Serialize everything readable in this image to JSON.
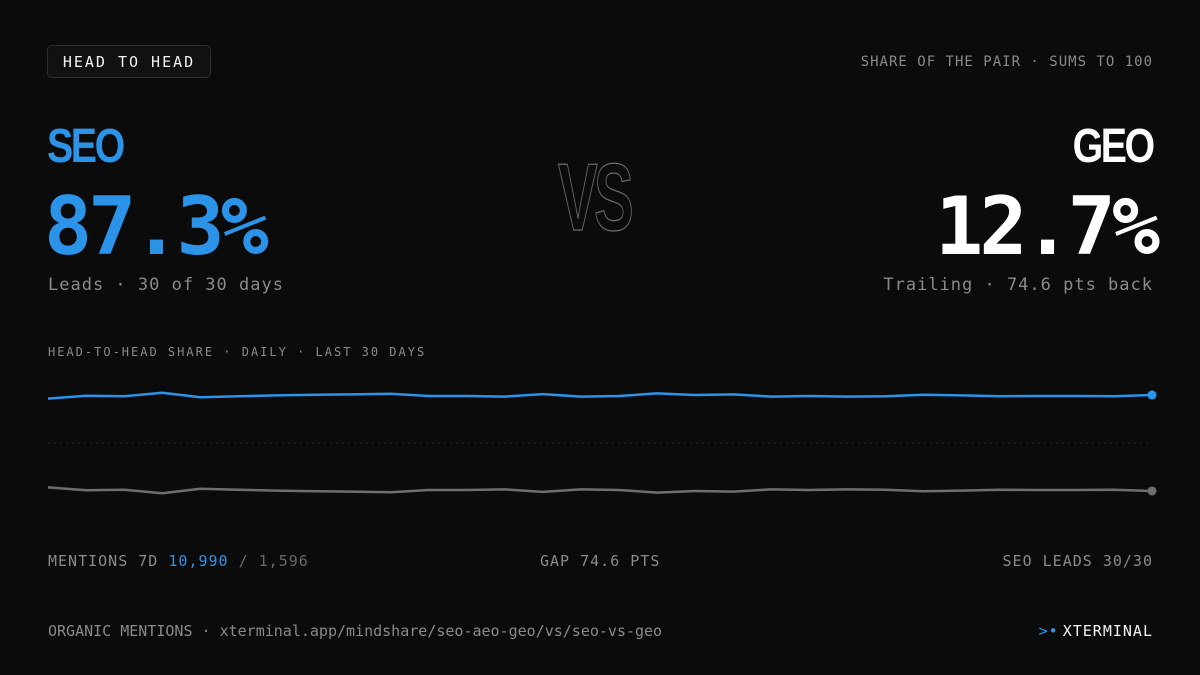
{
  "header": {
    "badge": "HEAD TO HEAD",
    "share_note": "SHARE OF THE PAIR · SUMS TO 100"
  },
  "left": {
    "name": "SEO",
    "pct": "87.3%",
    "sub": "Leads · 30 of 30 days",
    "color": "#2b93e8"
  },
  "vs_label": "VS",
  "right": {
    "name": "GEO",
    "pct": "12.7%",
    "sub": "Trailing · 74.6 pts back",
    "color": "#ffffff"
  },
  "chart_data": {
    "type": "line",
    "title": "HEAD-TO-HEAD SHARE · DAILY · LAST 30 DAYS",
    "x": [
      1,
      2,
      3,
      4,
      5,
      6,
      7,
      8,
      9,
      10,
      11,
      12,
      13,
      14,
      15,
      16,
      17,
      18,
      19,
      20,
      21,
      22,
      23,
      24,
      25,
      26,
      27,
      28,
      29,
      30
    ],
    "series": [
      {
        "name": "SEO",
        "color": "#2b93e8",
        "values": [
          86.2,
          87.1,
          86.9,
          88.0,
          86.6,
          86.9,
          87.2,
          87.4,
          87.5,
          87.7,
          87.0,
          87.0,
          86.8,
          87.6,
          86.8,
          87.0,
          87.8,
          87.3,
          87.5,
          86.8,
          87.0,
          86.8,
          86.9,
          87.4,
          87.2,
          86.9,
          87.0,
          87.0,
          86.9,
          87.3
        ]
      },
      {
        "name": "GEO",
        "color": "#6e6e6e",
        "values": [
          13.8,
          12.9,
          13.1,
          12.0,
          13.4,
          13.1,
          12.8,
          12.6,
          12.5,
          12.3,
          13.0,
          13.0,
          13.2,
          12.4,
          13.2,
          13.0,
          12.2,
          12.7,
          12.5,
          13.2,
          13.0,
          13.2,
          13.1,
          12.6,
          12.8,
          13.1,
          13.0,
          13.0,
          13.1,
          12.7
        ]
      }
    ],
    "grid": "dotted midline"
  },
  "stats": {
    "mentions_label": "MENTIONS 7D",
    "mentions_left": "10,990",
    "mentions_sep": "/",
    "mentions_right": "1,596",
    "gap": "GAP 74.6 PTS",
    "leads": "SEO LEADS 30/30"
  },
  "footer": {
    "text": "ORGANIC MENTIONS · xterminal.app/mindshare/seo-aeo-geo/vs/seo-vs-geo",
    "brand_mark": ">•",
    "brand": "XTERMINAL"
  }
}
